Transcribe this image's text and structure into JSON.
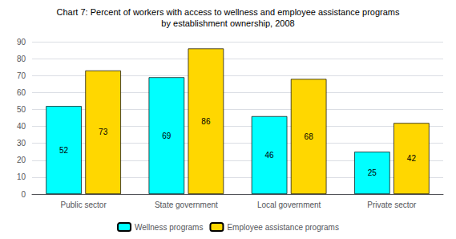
{
  "chart_data": {
    "type": "bar",
    "title": "Chart 7: Percent of workers with access to wellness and employee assistance programs",
    "subtitle": "by establishment ownership, 2008",
    "categories": [
      "Public sector",
      "State government",
      "Local government",
      "Private sector"
    ],
    "series": [
      {
        "name": "Wellness programs",
        "color": "#00FFFF",
        "values": [
          52,
          69,
          46,
          25
        ]
      },
      {
        "name": "Employee assistance programs",
        "color": "#FFD700",
        "values": [
          73,
          86,
          68,
          42
        ]
      }
    ],
    "ylim": [
      0,
      90
    ],
    "yticks": [
      0,
      10,
      20,
      30,
      40,
      50,
      60,
      70,
      80,
      90
    ],
    "grid": true,
    "legend": "bottom",
    "data_labels": true
  }
}
